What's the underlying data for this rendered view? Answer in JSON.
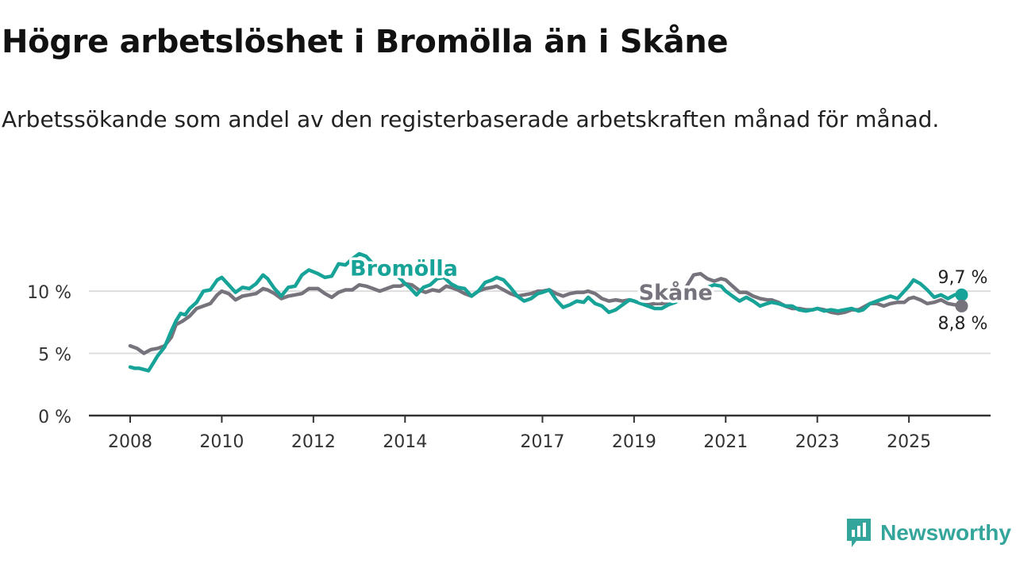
{
  "title": "Högre arbetslöshet i Bromölla än i Skåne",
  "subtitle": "Arbetssökande som andel av den registerbaserade arbetskraften månad för månad.",
  "brand": "Newsworthy",
  "colors": {
    "bromolla": "#17a398",
    "skane": "#76737c",
    "grid": "#dddddd",
    "axis": "#333333"
  },
  "chart_data": {
    "type": "line",
    "title": "Högre arbetslöshet i Bromölla än i Skåne",
    "xlabel": "",
    "ylabel": "",
    "ylim": [
      0,
      13
    ],
    "xlim": [
      2008.0,
      2026.8
    ],
    "x_ticks": [
      {
        "value": 2008,
        "label": "2008"
      },
      {
        "value": 2010,
        "label": "2010"
      },
      {
        "value": 2012,
        "label": "2012"
      },
      {
        "value": 2014,
        "label": "2014"
      },
      {
        "value": 2017,
        "label": "2017"
      },
      {
        "value": 2019,
        "label": "2019"
      },
      {
        "value": 2021,
        "label": "2021"
      },
      {
        "value": 2023,
        "label": "2023"
      },
      {
        "value": 2025,
        "label": "2025"
      }
    ],
    "y_ticks": [
      {
        "value": 0,
        "label": "0 %"
      },
      {
        "value": 5,
        "label": "5 %"
      },
      {
        "value": 10,
        "label": "10 %"
      }
    ],
    "series": [
      {
        "name": "Bromölla",
        "label": "Bromölla",
        "end_label": "9,7 %",
        "points": [
          [
            2008.0,
            3.9
          ],
          [
            2008.1,
            3.8
          ],
          [
            2008.2,
            3.8
          ],
          [
            2008.3,
            3.7
          ],
          [
            2008.4,
            3.6
          ],
          [
            2008.5,
            4.2
          ],
          [
            2008.6,
            4.8
          ],
          [
            2008.75,
            5.5
          ],
          [
            2008.9,
            6.8
          ],
          [
            2009.0,
            7.6
          ],
          [
            2009.1,
            8.2
          ],
          [
            2009.2,
            8.1
          ],
          [
            2009.3,
            8.6
          ],
          [
            2009.45,
            9.1
          ],
          [
            2009.6,
            10.0
          ],
          [
            2009.75,
            10.1
          ],
          [
            2009.9,
            10.9
          ],
          [
            2010.0,
            11.1
          ],
          [
            2010.15,
            10.5
          ],
          [
            2010.3,
            9.9
          ],
          [
            2010.45,
            10.3
          ],
          [
            2010.6,
            10.2
          ],
          [
            2010.75,
            10.6
          ],
          [
            2010.9,
            11.3
          ],
          [
            2011.0,
            11.0
          ],
          [
            2011.15,
            10.2
          ],
          [
            2011.3,
            9.6
          ],
          [
            2011.45,
            10.3
          ],
          [
            2011.6,
            10.4
          ],
          [
            2011.75,
            11.3
          ],
          [
            2011.9,
            11.7
          ],
          [
            2012.1,
            11.4
          ],
          [
            2012.25,
            11.1
          ],
          [
            2012.4,
            11.2
          ],
          [
            2012.55,
            12.2
          ],
          [
            2012.7,
            12.1
          ],
          [
            2012.85,
            12.6
          ],
          [
            2013.0,
            13.0
          ],
          [
            2013.15,
            12.8
          ],
          [
            2013.3,
            12.2
          ],
          [
            2013.45,
            11.9
          ],
          [
            2013.6,
            11.6
          ],
          [
            2013.75,
            11.4
          ],
          [
            2013.9,
            11.0
          ],
          [
            2014.0,
            10.6
          ],
          [
            2014.1,
            10.3
          ],
          [
            2014.25,
            9.7
          ],
          [
            2014.4,
            10.3
          ],
          [
            2014.55,
            10.5
          ],
          [
            2014.7,
            11.0
          ],
          [
            2014.85,
            11.1
          ],
          [
            2015.0,
            10.6
          ],
          [
            2015.15,
            10.3
          ],
          [
            2015.3,
            10.2
          ],
          [
            2015.45,
            9.6
          ],
          [
            2015.6,
            10.0
          ],
          [
            2015.75,
            10.7
          ],
          [
            2015.9,
            10.9
          ],
          [
            2016.0,
            11.1
          ],
          [
            2016.15,
            10.9
          ],
          [
            2016.3,
            10.3
          ],
          [
            2016.45,
            9.6
          ],
          [
            2016.6,
            9.2
          ],
          [
            2016.75,
            9.4
          ],
          [
            2016.9,
            9.8
          ],
          [
            2017.0,
            9.9
          ],
          [
            2017.15,
            10.1
          ],
          [
            2017.3,
            9.3
          ],
          [
            2017.45,
            8.7
          ],
          [
            2017.6,
            8.9
          ],
          [
            2017.75,
            9.2
          ],
          [
            2017.9,
            9.1
          ],
          [
            2018.0,
            9.5
          ],
          [
            2018.15,
            9.0
          ],
          [
            2018.3,
            8.8
          ],
          [
            2018.45,
            8.3
          ],
          [
            2018.6,
            8.5
          ],
          [
            2018.75,
            8.9
          ],
          [
            2018.9,
            9.3
          ],
          [
            2019.0,
            9.2
          ],
          [
            2019.15,
            9.0
          ],
          [
            2019.3,
            8.8
          ],
          [
            2019.45,
            8.6
          ],
          [
            2019.6,
            8.6
          ],
          [
            2019.75,
            8.9
          ],
          [
            2019.9,
            9.1
          ],
          [
            2020.0,
            9.3
          ],
          [
            2020.15,
            9.3
          ],
          [
            2020.3,
            9.6
          ],
          [
            2020.45,
            10.0
          ],
          [
            2020.6,
            10.3
          ],
          [
            2020.75,
            10.5
          ],
          [
            2020.9,
            10.4
          ],
          [
            2021.0,
            10.0
          ],
          [
            2021.15,
            9.6
          ],
          [
            2021.3,
            9.2
          ],
          [
            2021.45,
            9.5
          ],
          [
            2021.6,
            9.2
          ],
          [
            2021.75,
            8.8
          ],
          [
            2021.9,
            9.0
          ],
          [
            2022.0,
            9.1
          ],
          [
            2022.15,
            9.0
          ],
          [
            2022.3,
            8.8
          ],
          [
            2022.45,
            8.8
          ],
          [
            2022.6,
            8.5
          ],
          [
            2022.75,
            8.4
          ],
          [
            2022.9,
            8.5
          ],
          [
            2023.0,
            8.6
          ],
          [
            2023.15,
            8.4
          ],
          [
            2023.3,
            8.5
          ],
          [
            2023.45,
            8.4
          ],
          [
            2023.6,
            8.5
          ],
          [
            2023.75,
            8.6
          ],
          [
            2023.9,
            8.4
          ],
          [
            2024.0,
            8.5
          ],
          [
            2024.15,
            9.0
          ],
          [
            2024.3,
            9.2
          ],
          [
            2024.45,
            9.4
          ],
          [
            2024.6,
            9.6
          ],
          [
            2024.75,
            9.4
          ],
          [
            2024.9,
            10.0
          ],
          [
            2025.0,
            10.4
          ],
          [
            2025.1,
            10.9
          ],
          [
            2025.25,
            10.6
          ],
          [
            2025.4,
            10.1
          ],
          [
            2025.55,
            9.5
          ],
          [
            2025.7,
            9.7
          ],
          [
            2025.85,
            9.4
          ],
          [
            2026.0,
            9.7
          ],
          [
            2026.15,
            9.7
          ]
        ]
      },
      {
        "name": "Skåne",
        "label": "Skåne",
        "end_label": "8,8 %",
        "points": [
          [
            2008.0,
            5.6
          ],
          [
            2008.15,
            5.4
          ],
          [
            2008.3,
            5.0
          ],
          [
            2008.45,
            5.3
          ],
          [
            2008.6,
            5.4
          ],
          [
            2008.75,
            5.6
          ],
          [
            2008.9,
            6.3
          ],
          [
            2009.0,
            7.3
          ],
          [
            2009.15,
            7.6
          ],
          [
            2009.3,
            8.0
          ],
          [
            2009.45,
            8.6
          ],
          [
            2009.6,
            8.8
          ],
          [
            2009.75,
            9.0
          ],
          [
            2009.9,
            9.7
          ],
          [
            2010.0,
            10.0
          ],
          [
            2010.15,
            9.8
          ],
          [
            2010.3,
            9.3
          ],
          [
            2010.45,
            9.6
          ],
          [
            2010.6,
            9.7
          ],
          [
            2010.75,
            9.8
          ],
          [
            2010.9,
            10.2
          ],
          [
            2011.0,
            10.1
          ],
          [
            2011.15,
            9.8
          ],
          [
            2011.3,
            9.4
          ],
          [
            2011.45,
            9.6
          ],
          [
            2011.6,
            9.7
          ],
          [
            2011.75,
            9.8
          ],
          [
            2011.9,
            10.2
          ],
          [
            2012.1,
            10.2
          ],
          [
            2012.25,
            9.8
          ],
          [
            2012.4,
            9.5
          ],
          [
            2012.55,
            9.9
          ],
          [
            2012.7,
            10.1
          ],
          [
            2012.85,
            10.1
          ],
          [
            2013.0,
            10.5
          ],
          [
            2013.15,
            10.4
          ],
          [
            2013.3,
            10.2
          ],
          [
            2013.45,
            10.0
          ],
          [
            2013.6,
            10.2
          ],
          [
            2013.75,
            10.4
          ],
          [
            2013.9,
            10.4
          ],
          [
            2014.0,
            10.6
          ],
          [
            2014.15,
            10.5
          ],
          [
            2014.3,
            10.1
          ],
          [
            2014.45,
            9.9
          ],
          [
            2014.6,
            10.1
          ],
          [
            2014.75,
            10.0
          ],
          [
            2014.9,
            10.4
          ],
          [
            2015.0,
            10.3
          ],
          [
            2015.15,
            10.1
          ],
          [
            2015.3,
            9.8
          ],
          [
            2015.45,
            9.6
          ],
          [
            2015.6,
            10.0
          ],
          [
            2015.75,
            10.2
          ],
          [
            2015.9,
            10.3
          ],
          [
            2016.0,
            10.4
          ],
          [
            2016.15,
            10.1
          ],
          [
            2016.3,
            9.8
          ],
          [
            2016.45,
            9.6
          ],
          [
            2016.6,
            9.7
          ],
          [
            2016.75,
            9.8
          ],
          [
            2016.9,
            10.0
          ],
          [
            2017.0,
            10.0
          ],
          [
            2017.15,
            10.1
          ],
          [
            2017.3,
            9.8
          ],
          [
            2017.45,
            9.6
          ],
          [
            2017.6,
            9.8
          ],
          [
            2017.75,
            9.9
          ],
          [
            2017.9,
            9.9
          ],
          [
            2018.0,
            10.0
          ],
          [
            2018.15,
            9.8
          ],
          [
            2018.3,
            9.4
          ],
          [
            2018.45,
            9.2
          ],
          [
            2018.6,
            9.3
          ],
          [
            2018.75,
            9.2
          ],
          [
            2018.9,
            9.3
          ],
          [
            2019.0,
            9.2
          ],
          [
            2019.15,
            9.0
          ],
          [
            2019.3,
            8.9
          ],
          [
            2019.45,
            9.0
          ],
          [
            2019.6,
            9.0
          ],
          [
            2019.75,
            9.1
          ],
          [
            2019.9,
            9.1
          ],
          [
            2020.0,
            9.5
          ],
          [
            2020.15,
            10.4
          ],
          [
            2020.3,
            11.3
          ],
          [
            2020.45,
            11.4
          ],
          [
            2020.6,
            11.0
          ],
          [
            2020.75,
            10.8
          ],
          [
            2020.9,
            11.0
          ],
          [
            2021.0,
            10.9
          ],
          [
            2021.15,
            10.4
          ],
          [
            2021.3,
            9.9
          ],
          [
            2021.45,
            9.9
          ],
          [
            2021.6,
            9.6
          ],
          [
            2021.75,
            9.4
          ],
          [
            2021.9,
            9.3
          ],
          [
            2022.0,
            9.3
          ],
          [
            2022.15,
            9.1
          ],
          [
            2022.3,
            8.8
          ],
          [
            2022.45,
            8.6
          ],
          [
            2022.6,
            8.6
          ],
          [
            2022.75,
            8.5
          ],
          [
            2022.9,
            8.5
          ],
          [
            2023.0,
            8.6
          ],
          [
            2023.15,
            8.5
          ],
          [
            2023.3,
            8.3
          ],
          [
            2023.45,
            8.2
          ],
          [
            2023.6,
            8.3
          ],
          [
            2023.75,
            8.5
          ],
          [
            2023.9,
            8.5
          ],
          [
            2024.0,
            8.7
          ],
          [
            2024.15,
            9.0
          ],
          [
            2024.3,
            9.0
          ],
          [
            2024.45,
            8.8
          ],
          [
            2024.6,
            9.0
          ],
          [
            2024.75,
            9.1
          ],
          [
            2024.9,
            9.1
          ],
          [
            2025.0,
            9.4
          ],
          [
            2025.1,
            9.5
          ],
          [
            2025.25,
            9.3
          ],
          [
            2025.4,
            9.0
          ],
          [
            2025.55,
            9.1
          ],
          [
            2025.7,
            9.3
          ],
          [
            2025.85,
            9.0
          ],
          [
            2026.0,
            8.9
          ],
          [
            2026.15,
            8.8
          ]
        ]
      }
    ]
  }
}
